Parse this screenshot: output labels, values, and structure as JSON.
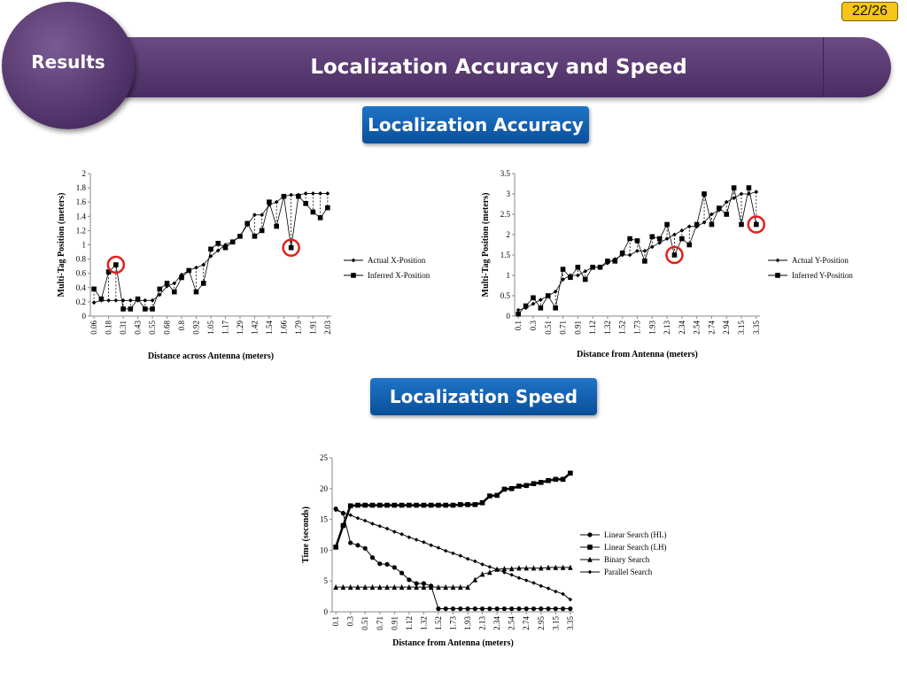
{
  "page": {
    "number": "22/26"
  },
  "section_label": "Results",
  "title": "Localization Accuracy and Speed",
  "subheadings": {
    "accuracy": "Localization Accuracy",
    "speed": "Localization Speed"
  },
  "chart_data": [
    {
      "type": "line",
      "xlabel": "Distance across Antenna (meters)",
      "ylabel": "Multi-Tag Position (meters)",
      "ylim": [
        0,
        2
      ],
      "yticks": [
        "0",
        "0.2",
        "0.4",
        "0.6",
        "0.8",
        "1",
        "1.2",
        "1.4",
        "1.6",
        "1.8",
        "2"
      ],
      "categories": [
        "0.06",
        "0.12",
        "0.18",
        "0.25",
        "0.31",
        "0.37",
        "0.43",
        "0.49",
        "0.55",
        "0.61",
        "0.68",
        "0.74",
        "0.8",
        "0.86",
        "0.92",
        "0.98",
        "1.05",
        "1.11",
        "1.17",
        "1.23",
        "1.29",
        "1.35",
        "1.42",
        "1.48",
        "1.54",
        "1.6",
        "1.66",
        "1.72",
        "1.79",
        "1.85",
        "1.91",
        "1.97",
        "2.03"
      ],
      "ticks": [
        "0.06",
        "0.18",
        "0.31",
        "0.43",
        "0.55",
        "0.68",
        "0.8",
        "0.92",
        "1.05",
        "1.17",
        "1.29",
        "1.42",
        "1.54",
        "1.66",
        "1.79",
        "1.91",
        "2.03"
      ],
      "series": [
        {
          "name": "Actual X-Position",
          "values": [
            0.19,
            0.22,
            0.22,
            0.22,
            0.22,
            0.22,
            0.22,
            0.22,
            0.22,
            0.3,
            0.42,
            0.46,
            0.58,
            0.64,
            0.68,
            0.72,
            0.84,
            0.92,
            1.0,
            1.05,
            1.12,
            1.28,
            1.42,
            1.42,
            1.56,
            1.6,
            1.68,
            1.7,
            1.7,
            1.72,
            1.72,
            1.72,
            1.72
          ]
        },
        {
          "name": "Inferred X-Position",
          "values": [
            0.38,
            0.24,
            0.62,
            0.72,
            0.1,
            0.1,
            0.24,
            0.1,
            0.1,
            0.38,
            0.46,
            0.34,
            0.54,
            0.64,
            0.34,
            0.46,
            0.94,
            1.02,
            0.96,
            1.04,
            1.12,
            1.3,
            1.12,
            1.2,
            1.6,
            1.26,
            1.68,
            0.96,
            1.68,
            1.58,
            1.46,
            1.38,
            1.52
          ]
        }
      ],
      "highlights": [
        "0.25",
        "1.72"
      ],
      "legend": "right"
    },
    {
      "type": "line",
      "xlabel": "Distance from Antenna (meters)",
      "ylabel": "Multi-Tag Position (meters)",
      "ylim": [
        0,
        3.5
      ],
      "yticks": [
        "0",
        "0.5",
        "1",
        "1.5",
        "2",
        "2.5",
        "3",
        "3.5"
      ],
      "categories": [
        "0.1",
        "0.2",
        "0.3",
        "0.41",
        "0.51",
        "0.61",
        "0.71",
        "0.81",
        "0.91",
        "1.02",
        "1.12",
        "1.22",
        "1.32",
        "1.42",
        "1.52",
        "1.63",
        "1.73",
        "1.83",
        "1.93",
        "2.03",
        "2.13",
        "2.24",
        "2.34",
        "2.44",
        "2.54",
        "2.64",
        "2.74",
        "2.84",
        "2.94",
        "3.05",
        "3.15",
        "3.25",
        "3.35"
      ],
      "ticks": [
        "0.1",
        "0.3",
        "0.51",
        "0.71",
        "0.91",
        "1.12",
        "1.32",
        "1.52",
        "1.73",
        "1.93",
        "2.13",
        "2.34",
        "2.54",
        "2.74",
        "2.94",
        "3.15",
        "3.35"
      ],
      "series": [
        {
          "name": "Actual Y-Position",
          "values": [
            0.15,
            0.2,
            0.3,
            0.4,
            0.5,
            0.6,
            0.9,
            1.0,
            1.0,
            1.1,
            1.2,
            1.2,
            1.3,
            1.4,
            1.5,
            1.5,
            1.6,
            1.6,
            1.7,
            1.8,
            1.9,
            2.0,
            2.1,
            2.2,
            2.2,
            2.3,
            2.5,
            2.6,
            2.8,
            2.9,
            3.0,
            3.0,
            3.05
          ]
        },
        {
          "name": "Inferred Y-Position",
          "values": [
            0.05,
            0.25,
            0.45,
            0.2,
            0.5,
            0.2,
            1.15,
            0.95,
            1.2,
            0.9,
            1.2,
            1.2,
            1.35,
            1.35,
            1.55,
            1.9,
            1.85,
            1.35,
            1.95,
            1.9,
            2.25,
            1.5,
            1.9,
            1.75,
            2.25,
            3.0,
            2.25,
            2.65,
            2.5,
            3.15,
            2.25,
            3.15,
            2.25
          ]
        }
      ],
      "highlights": [
        "2.24",
        "3.35"
      ],
      "legend": "right"
    },
    {
      "type": "line",
      "xlabel": "Distance from Antenna (meters)",
      "ylabel": "Time (seconds)",
      "ylim": [
        0,
        25
      ],
      "yticks": [
        "0",
        "5",
        "10",
        "15",
        "20",
        "25"
      ],
      "categories": [
        "0.1",
        "0.2",
        "0.3",
        "0.41",
        "0.51",
        "0.61",
        "0.71",
        "0.81",
        "0.91",
        "1.02",
        "1.12",
        "1.22",
        "1.32",
        "1.42",
        "1.52",
        "1.63",
        "1.73",
        "1.83",
        "1.93",
        "2.03",
        "2.13",
        "2.24",
        "2.34",
        "2.44",
        "2.54",
        "2.64",
        "2.74",
        "2.84",
        "2.95",
        "3.05",
        "3.15",
        "3.25",
        "3.35"
      ],
      "ticks": [
        "0.1",
        "0.3",
        "0.51",
        "0.71",
        "0.91",
        "1.12",
        "1.32",
        "1.52",
        "1.73",
        "1.93",
        "2.13",
        "2.34",
        "2.54",
        "2.74",
        "2.95",
        "3.15",
        "3.35"
      ],
      "series": [
        {
          "name": "Linear Search (HL)",
          "values": [
            16.7,
            16.0,
            11.2,
            10.8,
            10.3,
            8.8,
            7.8,
            7.7,
            7.2,
            6.3,
            5.2,
            4.6,
            4.6,
            4.2,
            0.5,
            0.5,
            0.5,
            0.5,
            0.5,
            0.5,
            0.5,
            0.5,
            0.5,
            0.5,
            0.5,
            0.5,
            0.5,
            0.5,
            0.5,
            0.5,
            0.5,
            0.5,
            0.5
          ]
        },
        {
          "name": "Linear Search (LH)",
          "values": [
            10.5,
            14.0,
            17.2,
            17.3,
            17.3,
            17.3,
            17.3,
            17.3,
            17.3,
            17.3,
            17.3,
            17.3,
            17.3,
            17.3,
            17.3,
            17.3,
            17.3,
            17.4,
            17.4,
            17.4,
            17.7,
            18.8,
            18.9,
            19.9,
            20.0,
            20.4,
            20.5,
            20.8,
            21.0,
            21.3,
            21.5,
            21.5,
            22.5
          ]
        },
        {
          "name": "Binary Search",
          "values": [
            4.0,
            4.0,
            4.0,
            4.0,
            4.0,
            4.0,
            4.0,
            4.0,
            4.0,
            4.0,
            4.0,
            4.0,
            4.0,
            4.0,
            4.0,
            4.0,
            4.0,
            4.0,
            4.0,
            5.2,
            6.1,
            6.4,
            6.9,
            7.0,
            7.0,
            7.1,
            7.1,
            7.1,
            7.1,
            7.2,
            7.2,
            7.2,
            7.2
          ]
        },
        {
          "name": "Parallel Search",
          "values": [
            16.5,
            16.1,
            15.7,
            15.2,
            14.8,
            14.3,
            13.9,
            13.5,
            13.0,
            12.6,
            12.1,
            11.7,
            11.3,
            10.8,
            10.4,
            9.9,
            9.5,
            9.1,
            8.6,
            8.2,
            7.7,
            7.3,
            6.9,
            6.4,
            6.0,
            5.5,
            5.1,
            4.7,
            4.2,
            3.8,
            3.3,
            2.9,
            2.0
          ]
        }
      ],
      "legend": "right"
    }
  ]
}
